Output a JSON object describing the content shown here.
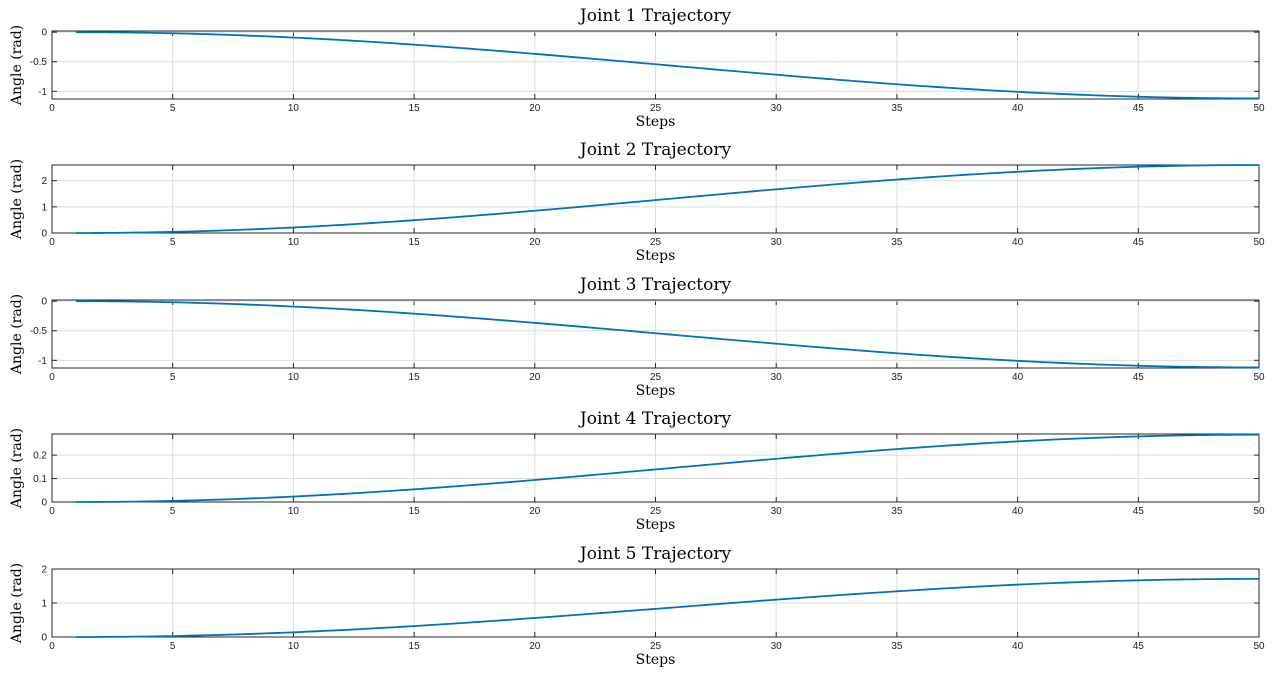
{
  "chart_data": [
    {
      "type": "line",
      "title": "Joint 1 Trajectory",
      "xlabel": "Steps",
      "ylabel": "Angle (rad)",
      "xlim": [
        0,
        50
      ],
      "ylim": [
        -1.13,
        0.02
      ],
      "xticks": [
        0,
        5,
        10,
        15,
        20,
        25,
        30,
        35,
        40,
        45,
        50
      ],
      "yticks": [
        0,
        -0.5,
        -1
      ],
      "ytick_labels": [
        "0",
        "-0.5",
        "-1"
      ],
      "grid": true,
      "series": [
        {
          "color": "#0072bd",
          "start_value": 0,
          "end_value": -1.12,
          "x_start": 1,
          "x_end": 50
        }
      ]
    },
    {
      "type": "line",
      "title": "Joint 2 Trajectory",
      "xlabel": "Steps",
      "ylabel": "Angle (rad)",
      "xlim": [
        0,
        50
      ],
      "ylim": [
        0,
        2.6
      ],
      "xticks": [
        0,
        5,
        10,
        15,
        20,
        25,
        30,
        35,
        40,
        45,
        50
      ],
      "yticks": [
        0,
        1,
        2
      ],
      "ytick_labels": [
        "0",
        "1",
        "2"
      ],
      "grid": true,
      "series": [
        {
          "color": "#0072bd",
          "start_value": 0,
          "end_value": 2.6,
          "x_start": 1,
          "x_end": 50
        }
      ]
    },
    {
      "type": "line",
      "title": "Joint 3 Trajectory",
      "xlabel": "Steps",
      "ylabel": "Angle (rad)",
      "xlim": [
        0,
        50
      ],
      "ylim": [
        -1.13,
        0.02
      ],
      "xticks": [
        0,
        5,
        10,
        15,
        20,
        25,
        30,
        35,
        40,
        45,
        50
      ],
      "yticks": [
        0,
        -0.5,
        -1
      ],
      "ytick_labels": [
        "0",
        "-0.5",
        "-1"
      ],
      "grid": true,
      "series": [
        {
          "color": "#0072bd",
          "start_value": 0,
          "end_value": -1.12,
          "x_start": 1,
          "x_end": 50
        }
      ]
    },
    {
      "type": "line",
      "title": "Joint 4 Trajectory",
      "xlabel": "Steps",
      "ylabel": "Angle (rad)",
      "xlim": [
        0,
        50
      ],
      "ylim": [
        0,
        0.29
      ],
      "xticks": [
        0,
        5,
        10,
        15,
        20,
        25,
        30,
        35,
        40,
        45,
        50
      ],
      "yticks": [
        0,
        0.1,
        0.2
      ],
      "ytick_labels": [
        "0",
        "0.1",
        "0.2"
      ],
      "grid": true,
      "series": [
        {
          "color": "#0072bd",
          "start_value": 0,
          "end_value": 0.287,
          "x_start": 1,
          "x_end": 50
        }
      ]
    },
    {
      "type": "line",
      "title": "Joint 5 Trajectory",
      "xlabel": "Steps",
      "ylabel": "Angle (rad)",
      "xlim": [
        0,
        50
      ],
      "ylim": [
        0,
        2
      ],
      "xticks": [
        0,
        5,
        10,
        15,
        20,
        25,
        30,
        35,
        40,
        45,
        50
      ],
      "yticks": [
        0,
        1,
        2
      ],
      "ytick_labels": [
        "0",
        "1",
        "2"
      ],
      "grid": true,
      "series": [
        {
          "color": "#0072bd",
          "start_value": 0,
          "end_value": 1.71,
          "x_start": 1,
          "x_end": 50
        }
      ]
    }
  ]
}
